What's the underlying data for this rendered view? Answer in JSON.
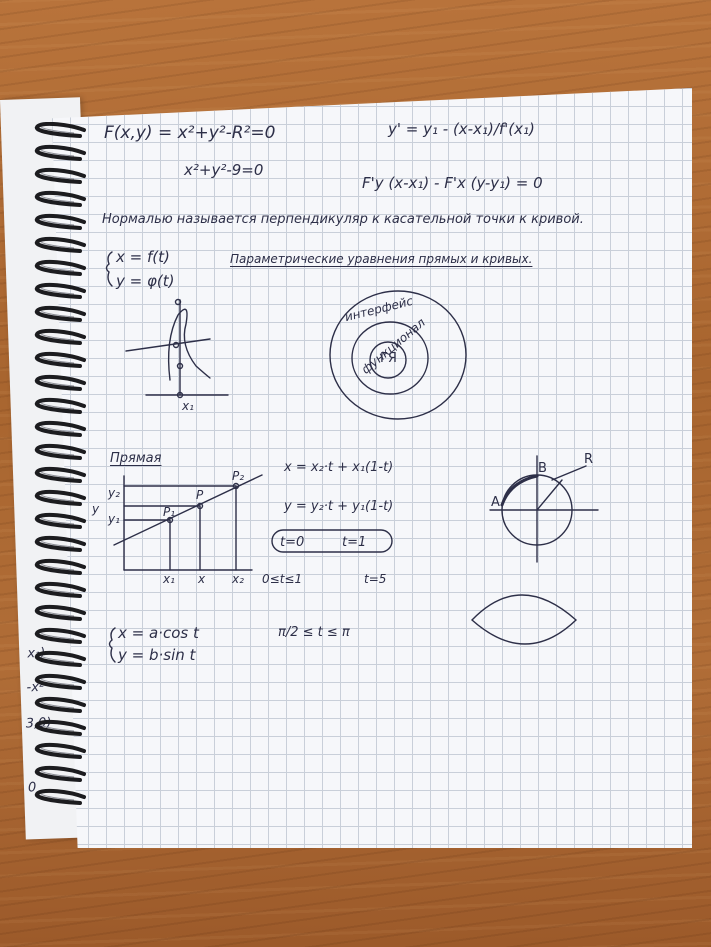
{
  "scene": {
    "left_page_fragments": [
      "x₁)",
      "-x²",
      "3,0)",
      "0"
    ]
  },
  "formulas": {
    "f_xy": "F(x,y) = x²+y²-R²=0",
    "circle_eq": "x²+y²-9=0",
    "normal_line": "y' = y₁ - (x-x₁)/f'(x₁)",
    "tangent_eq": "F'y (x-x₁) - F'x (y-y₁) = 0",
    "normal_definition": "Нормалью называется перпендикуляр к касательной точки к кривой.",
    "param_system": [
      "x = f(t)",
      "y = φ(t)"
    ],
    "param_title": "Параметрические уравнения прямых и кривых.",
    "curve_point_label": "x₁"
  },
  "rings": {
    "outer": "интерфейс",
    "middle": "функционал",
    "inner": "ГЯ"
  },
  "line_section": {
    "title": "Прямая",
    "y_labels": [
      "y₂",
      "y",
      "y₁"
    ],
    "point_labels": [
      "P₁",
      "P",
      "P₂"
    ],
    "x_labels": [
      "x₁",
      "x",
      "x₂"
    ],
    "eq_x": "x = x₂·t + x₁(1-t)",
    "eq_y": "y = y₂·t + y₁(1-t)",
    "t0": "t=0",
    "t1": "t=1",
    "t_range": "0≤t≤1",
    "t5": "t=5"
  },
  "arc_circle": {
    "label_a": "A",
    "label_b": "B",
    "label_r": "R"
  },
  "ellipse_section": {
    "system": [
      "x = a·cos t",
      "y = b·sin t"
    ],
    "range": "π/2 ≤ t ≤ π"
  }
}
